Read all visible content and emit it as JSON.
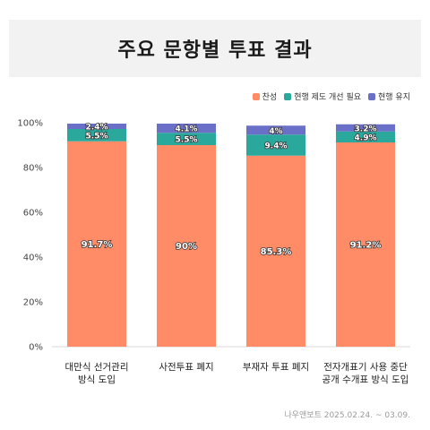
{
  "title": "주요 문항별 투표 결과",
  "source": "나우앤보트 2025.02.24. ~ 03.09.",
  "chart_data": {
    "type": "bar",
    "stacked": true,
    "categories": [
      [
        "대만식 선거관리",
        "방식 도입"
      ],
      [
        "사전투표 폐지"
      ],
      [
        "부재자 투표 폐지"
      ],
      [
        "전자개표기 사용 중단",
        "공개 수개표 방식 도입"
      ]
    ],
    "series": [
      {
        "name": "찬성",
        "color": "#ff8c66",
        "values": [
          91.7,
          90,
          85.3,
          91.2
        ],
        "labels": [
          "91.7%",
          "90%",
          "85.3%",
          "91.2%"
        ]
      },
      {
        "name": "현행 제도 개선 필요",
        "color": "#2aa89c",
        "values": [
          5.5,
          5.5,
          9.4,
          4.9
        ],
        "labels": [
          "5.5%",
          "5.5%",
          "9.4%",
          "4.9%"
        ]
      },
      {
        "name": "현행 유지",
        "color": "#6a6fc8",
        "values": [
          2.4,
          4.1,
          4,
          3.2
        ],
        "labels": [
          "2.4%",
          "4.1%",
          "4%",
          "3.2%"
        ]
      }
    ],
    "yticks": [
      "0%",
      "20%",
      "40%",
      "60%",
      "80%",
      "100%"
    ],
    "ylim": [
      0,
      100
    ],
    "grid": false,
    "legend_position": "top-right"
  }
}
